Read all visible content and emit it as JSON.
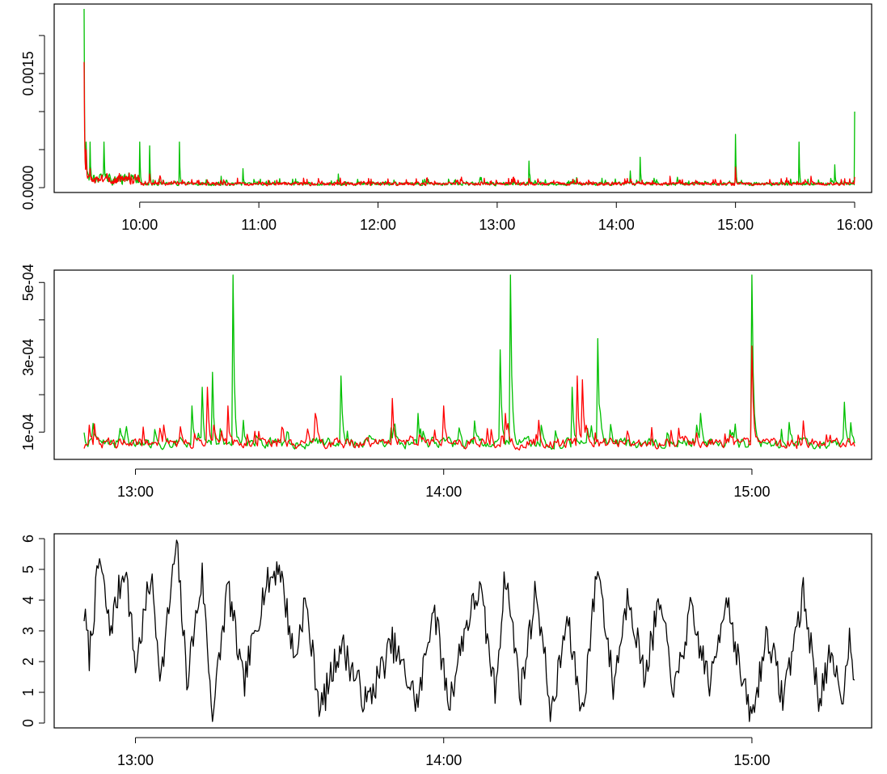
{
  "chart_data": [
    {
      "type": "line",
      "title": "",
      "xlabel": "",
      "ylabel": "",
      "xlim": [
        "09:32",
        "16:00"
      ],
      "ylim": [
        0,
        0.00235
      ],
      "x_ticks": [
        "10:00",
        "11:00",
        "12:00",
        "13:00",
        "14:00",
        "15:00",
        "16:00"
      ],
      "y_ticks": [
        "0.0000",
        "0.0015"
      ],
      "y_minor_ticks": [
        0,
        0.0005,
        0.001,
        0.0015,
        0.002
      ],
      "grid": false,
      "legend": "none",
      "series": [
        {
          "color": "#00c000",
          "spikes": [
            [
              "09:32",
              0.00235
            ],
            [
              "09:33",
              0.0006
            ],
            [
              "09:35",
              0.0006
            ],
            [
              "09:42",
              0.0006
            ],
            [
              "10:00",
              0.0006
            ],
            [
              "10:05",
              0.00055
            ],
            [
              "10:20",
              0.0006
            ],
            [
              "10:41",
              0.00015
            ],
            [
              "10:52",
              0.00025
            ],
            [
              "11:40",
              0.00018
            ],
            [
              "13:16",
              0.00035
            ],
            [
              "14:07",
              0.00022
            ],
            [
              "14:12",
              0.0004
            ],
            [
              "15:00",
              0.0007
            ],
            [
              "15:32",
              0.0006
            ],
            [
              "15:50",
              0.0003
            ],
            [
              "16:00",
              0.001
            ]
          ]
        },
        {
          "color": "#ff0000",
          "spikes": [
            [
              "09:32",
              0.00165
            ],
            [
              "09:33",
              0.0005
            ],
            [
              "09:35",
              0.00025
            ],
            [
              "10:05",
              0.00018
            ],
            [
              "11:30",
              0.00012
            ],
            [
              "13:16",
              0.00012
            ],
            [
              "14:27",
              0.00015
            ],
            [
              "15:00",
              0.00027
            ],
            [
              "15:38",
              0.00015
            ],
            [
              "16:00",
              0.00014
            ]
          ]
        }
      ]
    },
    {
      "type": "line",
      "title": "",
      "xlabel": "",
      "ylabel": "",
      "xlim": [
        "12:50",
        "15:20"
      ],
      "ylim": [
        4e-05,
        0.00052
      ],
      "x_ticks": [
        "13:00",
        "14:00",
        "15:00"
      ],
      "y_ticks": [
        "1e-04",
        "3e-04",
        "5e-04"
      ],
      "y_minor_ticks": [
        0.0001,
        0.0002,
        0.0003,
        0.0004,
        0.0005
      ],
      "grid": false,
      "legend": "none",
      "series": [
        {
          "color": "#00c000",
          "spikes": [
            [
              "13:11",
              0.00017
            ],
            [
              "13:13",
              0.00022
            ],
            [
              "13:15",
              0.00026
            ],
            [
              "13:19",
              0.00052
            ],
            [
              "13:40",
              0.00025
            ],
            [
              "13:55",
              0.00015
            ],
            [
              "14:06",
              0.00013
            ],
            [
              "14:11",
              0.00032
            ],
            [
              "14:13",
              0.00052
            ],
            [
              "14:25",
              0.00022
            ],
            [
              "14:30",
              0.00035
            ],
            [
              "14:50",
              0.00015
            ],
            [
              "15:00",
              0.00052
            ],
            [
              "15:18",
              0.00018
            ]
          ]
        },
        {
          "color": "#ff0000",
          "spikes": [
            [
              "13:14",
              0.00022
            ],
            [
              "13:18",
              0.00017
            ],
            [
              "13:35",
              0.00015
            ],
            [
              "13:50",
              0.00019
            ],
            [
              "14:00",
              0.00017
            ],
            [
              "14:12",
              0.00015
            ],
            [
              "14:26",
              0.00025
            ],
            [
              "14:27",
              0.00024
            ],
            [
              "15:00",
              0.00033
            ],
            [
              "15:10",
              0.00013
            ]
          ]
        }
      ]
    },
    {
      "type": "line",
      "title": "",
      "xlabel": "",
      "ylabel": "",
      "xlim": [
        "12:50",
        "15:20"
      ],
      "ylim": [
        0,
        6
      ],
      "x_ticks": [
        "13:00",
        "14:00",
        "15:00"
      ],
      "y_ticks": [
        "0",
        "1",
        "2",
        "3",
        "4",
        "5",
        "6"
      ],
      "grid": false,
      "legend": "none",
      "series": [
        {
          "color": "#000000",
          "approx_points": [
            [
              "12:50",
              3.6
            ],
            [
              "12:51",
              2.2
            ],
            [
              "12:53",
              5.4
            ],
            [
              "12:55",
              3.0
            ],
            [
              "12:58",
              5.2
            ],
            [
              "13:00",
              1.8
            ],
            [
              "13:03",
              4.8
            ],
            [
              "13:05",
              1.5
            ],
            [
              "13:08",
              5.9
            ],
            [
              "13:10",
              1.4
            ],
            [
              "13:13",
              4.8
            ],
            [
              "13:15",
              0.2
            ],
            [
              "13:18",
              4.5
            ],
            [
              "13:21",
              1.2
            ],
            [
              "13:25",
              4.3
            ],
            [
              "13:28",
              5.2
            ],
            [
              "13:31",
              2.0
            ],
            [
              "13:33",
              4.0
            ],
            [
              "13:36",
              0.4
            ],
            [
              "13:40",
              2.6
            ],
            [
              "13:45",
              0.6
            ],
            [
              "13:50",
              2.6
            ],
            [
              "13:55",
              0.6
            ],
            [
              "13:58",
              3.9
            ],
            [
              "14:01",
              0.6
            ],
            [
              "14:04",
              3.0
            ],
            [
              "14:07",
              4.4
            ],
            [
              "14:10",
              1.0
            ],
            [
              "14:12",
              4.9
            ],
            [
              "14:15",
              1.0
            ],
            [
              "14:18",
              4.4
            ],
            [
              "14:21",
              0.2
            ],
            [
              "14:24",
              3.4
            ],
            [
              "14:27",
              0.3
            ],
            [
              "14:30",
              5.2
            ],
            [
              "14:33",
              1.2
            ],
            [
              "14:36",
              4.3
            ],
            [
              "14:39",
              1.5
            ],
            [
              "14:42",
              3.9
            ],
            [
              "14:45",
              1.0
            ],
            [
              "14:48",
              3.6
            ],
            [
              "14:52",
              1.2
            ],
            [
              "14:55",
              4.3
            ],
            [
              "14:58",
              1.4
            ],
            [
              "15:00",
              0.1
            ],
            [
              "15:03",
              3.0
            ],
            [
              "15:06",
              0.8
            ],
            [
              "15:10",
              4.2
            ],
            [
              "15:13",
              0.8
            ],
            [
              "15:15",
              2.0
            ],
            [
              "15:18",
              0.9
            ],
            [
              "15:19",
              3.2
            ],
            [
              "15:20",
              1.4
            ]
          ]
        }
      ]
    }
  ]
}
